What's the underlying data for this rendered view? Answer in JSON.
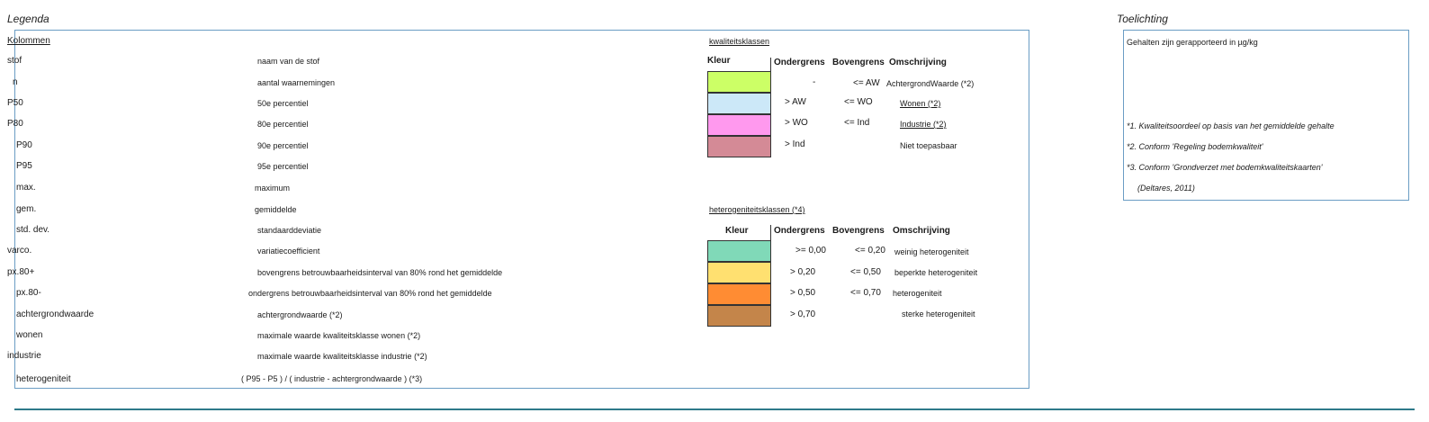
{
  "legend": {
    "title": "Legenda",
    "columns_header": "Kolommen",
    "rows": [
      {
        "label": "stof",
        "desc": "naam van de stof"
      },
      {
        "label": "n",
        "desc": "aantal waarnemingen"
      },
      {
        "label": "P50",
        "desc": "50e percentiel"
      },
      {
        "label": "P80",
        "desc": "80e percentiel"
      },
      {
        "label": "P90",
        "desc": "90e percentiel"
      },
      {
        "label": "P95",
        "desc": "95e percentiel"
      },
      {
        "label": "max.",
        "desc": "maximum"
      },
      {
        "label": "gem.",
        "desc": "gemiddelde"
      },
      {
        "label": "std. dev.",
        "desc": "standaarddeviatie"
      },
      {
        "label": "varco.",
        "desc": "variatiecoefficient"
      },
      {
        "label": "px.80+",
        "desc": "bovengrens betrouwbaarheidsinterval van 80% rond het gemiddelde"
      },
      {
        "label": "px.80-",
        "desc": "ondergrens betrouwbaarheidsinterval van 80% rond het gemiddelde"
      },
      {
        "label": "achtergrondwaarde",
        "desc": "achtergrondwaarde (*2)"
      },
      {
        "label": "wonen",
        "desc": "maximale waarde kwaliteitsklasse wonen (*2)"
      },
      {
        "label": "industrie",
        "desc": "maximale waarde kwaliteitsklasse industrie (*2)"
      },
      {
        "label": "heterogeniteit",
        "desc": "( P95 - P5 ) / ( industrie - achtergrondwaarde ) (*3)"
      }
    ]
  },
  "quality": {
    "title": "kwaliteitsklassen",
    "headers": {
      "kleur": "Kleur",
      "onder": "Ondergrens",
      "boven": "Bovengrens",
      "omschr": "Omschrijving"
    },
    "rows": [
      {
        "color": "#ccff66",
        "onder": "-",
        "boven": "<= AW",
        "omschr": "AchtergrondWaarde (*2)"
      },
      {
        "color": "#cce8f8",
        "onder": "> AW",
        "boven": "<= WO",
        "omschr": "Wonen (*2)"
      },
      {
        "color": "#ff99ee",
        "onder": "> WO",
        "boven": "<= Ind",
        "omschr": "Industrie (*2)"
      },
      {
        "color": "#d48a96",
        "onder": "> Ind",
        "boven": "",
        "omschr": "Niet toepasbaar"
      }
    ]
  },
  "hetero": {
    "title": "heterogeniteitsklassen (*4)",
    "headers": {
      "kleur": "Kleur",
      "onder": "Ondergrens",
      "boven": "Bovengrens",
      "omschr": "Omschrijving"
    },
    "rows": [
      {
        "color": "#80d9b8",
        "onder": ">= 0,00",
        "boven": "<= 0,20",
        "omschr": "weinig heterogeniteit"
      },
      {
        "color": "#ffe070",
        "onder": "> 0,20",
        "boven": "<= 0,50",
        "omschr": "beperkte heterogeniteit"
      },
      {
        "color": "#ff8c33",
        "onder": "> 0,50",
        "boven": "<= 0,70",
        "omschr": "heterogeniteit"
      },
      {
        "color": "#c4854a",
        "onder": "> 0,70",
        "boven": "",
        "omschr": "sterke heterogeniteit"
      }
    ]
  },
  "toelichting": {
    "title": "Toelichting",
    "intro": "Gehalten zijn gerapporteerd in µg/kg",
    "notes": [
      "*1. Kwaliteitsoordeel op basis van het gemiddelde gehalte",
      "*2. Conform 'Regeling bodemkwaliteit'",
      "*3. Conform 'Grondverzet met bodemkwaliteitskaarten'",
      "(Deltares, 2011)"
    ]
  },
  "colors": {
    "border": "#6b9dc4",
    "rule": "#2e7a8a"
  }
}
